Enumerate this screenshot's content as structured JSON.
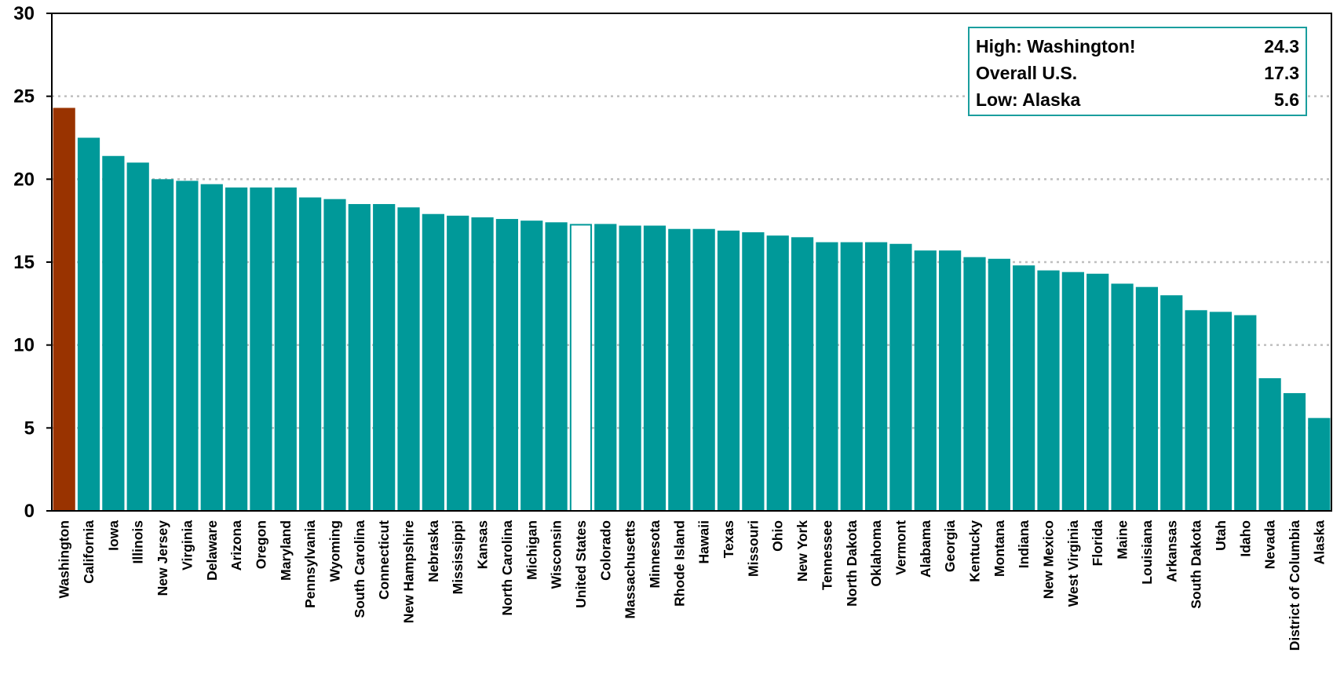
{
  "chart_data": {
    "type": "bar",
    "ylim": [
      0,
      30
    ],
    "yticks": [
      0,
      5,
      10,
      15,
      20,
      25,
      30
    ],
    "grid": true,
    "colors": {
      "default": "#009999",
      "highlight": "#993300",
      "overall": "#ffffff",
      "overall_stroke": "#009999",
      "grid": "#bfbfbf"
    },
    "categories": [
      "Washington",
      "California",
      "Iowa",
      "Illinois",
      "New Jersey",
      "Virginia",
      "Delaware",
      "Arizona",
      "Oregon",
      "Maryland",
      "Pennsylvania",
      "Wyoming",
      "South Carolina",
      "Connecticut",
      "New Hampshire",
      "Nebraska",
      "Mississippi",
      "Kansas",
      "North Carolina",
      "Michigan",
      "Wisconsin",
      "United States",
      "Colorado",
      "Massachusetts",
      "Minnesota",
      "Rhode Island",
      "Hawaii",
      "Texas",
      "Missouri",
      "Ohio",
      "New York",
      "Tennessee",
      "North Dakota",
      "Oklahoma",
      "Vermont",
      "Alabama",
      "Georgia",
      "Kentucky",
      "Montana",
      "Indiana",
      "New Mexico",
      "West Virginia",
      "Florida",
      "Maine",
      "Louisiana",
      "Arkansas",
      "South Dakota",
      "Utah",
      "Idaho",
      "Nevada",
      "District of Columbia",
      "Alaska"
    ],
    "values": [
      24.3,
      22.5,
      21.4,
      21.0,
      20.0,
      19.9,
      19.7,
      19.5,
      19.5,
      19.5,
      18.9,
      18.8,
      18.5,
      18.5,
      18.3,
      17.9,
      17.8,
      17.7,
      17.6,
      17.5,
      17.4,
      17.3,
      17.3,
      17.2,
      17.2,
      17.0,
      17.0,
      16.9,
      16.8,
      16.6,
      16.5,
      16.2,
      16.2,
      16.2,
      16.1,
      15.7,
      15.7,
      15.3,
      15.2,
      14.8,
      14.5,
      14.4,
      14.3,
      13.7,
      13.5,
      13.0,
      12.1,
      12.0,
      11.8,
      8.0,
      7.1,
      5.6
    ],
    "highlight_category": "Washington",
    "overall_category": "United States",
    "legend": [
      {
        "label": "High: Washington!",
        "value": "24.3"
      },
      {
        "label": "Overall U.S.",
        "value": "17.3"
      },
      {
        "label": "Low: Alaska",
        "value": "5.6"
      }
    ],
    "legend_placement": "top-right"
  }
}
